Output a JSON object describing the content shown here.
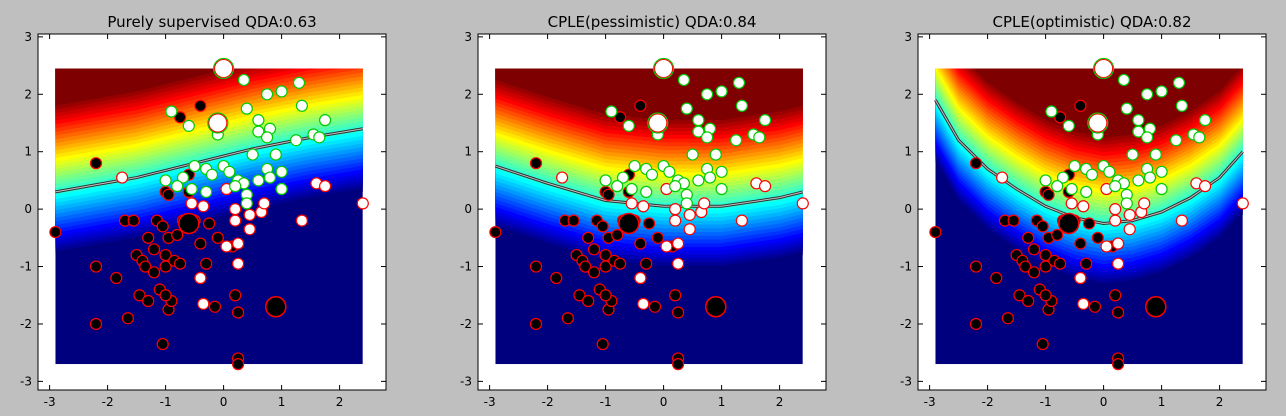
{
  "figure": {
    "background": "#bfbfbf"
  },
  "chart_data": [
    {
      "type": "scatter",
      "title": "Purely supervised QDA:0.63",
      "xlim": [
        -3.2,
        2.8
      ],
      "ylim": [
        -3.15,
        3.05
      ],
      "xticks": [
        "-3",
        "-2",
        "-1",
        "0",
        "1",
        "2"
      ],
      "yticks": [
        "-3",
        "-2",
        "-1",
        "0",
        "1",
        "2",
        "3"
      ],
      "grid": false,
      "background": "decision-function heatmap (jet colormap) with decision boundary",
      "boundary": {
        "x": [
          -2.9,
          -1.5,
          -0.5,
          0.5,
          1.5,
          2.4
        ],
        "y": [
          0.3,
          0.55,
          0.8,
          1.05,
          1.25,
          1.4
        ]
      }
    },
    {
      "type": "scatter",
      "title": "CPLE(pessimistic) QDA:0.84",
      "xlim": [
        -3.2,
        2.8
      ],
      "ylim": [
        -3.15,
        3.05
      ],
      "xticks": [
        "-3",
        "-2",
        "-1",
        "0",
        "1",
        "2"
      ],
      "yticks": [
        "-3",
        "-2",
        "-1",
        "0",
        "1",
        "2",
        "3"
      ],
      "grid": false,
      "background": "decision-function heatmap (jet colormap) with decision boundary",
      "boundary": {
        "x": [
          -2.9,
          -2.0,
          -1.0,
          0.0,
          1.0,
          2.0,
          2.4
        ],
        "y": [
          0.75,
          0.45,
          0.15,
          0.05,
          0.05,
          0.2,
          0.3
        ]
      }
    },
    {
      "type": "scatter",
      "title": "CPLE(optimistic) QDA:0.82",
      "xlim": [
        -3.2,
        2.8
      ],
      "ylim": [
        -3.15,
        3.05
      ],
      "xticks": [
        "-3",
        "-2",
        "-1",
        "0",
        "1",
        "2"
      ],
      "yticks": [
        "-3",
        "-2",
        "-1",
        "0",
        "1",
        "2",
        "3"
      ],
      "grid": false,
      "background": "decision-function heatmap (jet colormap) with decision boundary",
      "boundary": {
        "x": [
          -2.9,
          -2.5,
          -2.0,
          -1.5,
          -1.0,
          -0.5,
          0.0,
          0.5,
          1.0,
          1.5,
          2.0,
          2.4
        ],
        "y": [
          1.9,
          1.2,
          0.7,
          0.35,
          0.05,
          -0.15,
          -0.25,
          -0.2,
          -0.05,
          0.2,
          0.55,
          1.0
        ]
      }
    }
  ],
  "points": {
    "labeled_class0": [
      [
        -0.1,
        1.5
      ],
      [
        0.0,
        2.45
      ]
    ],
    "labeled_class1": [
      [
        -0.6,
        -0.25
      ],
      [
        0.9,
        -1.7
      ]
    ],
    "class0": [
      [
        -0.9,
        1.7
      ],
      [
        -0.6,
        1.45
      ],
      [
        -0.1,
        1.3
      ],
      [
        0.35,
        2.25
      ],
      [
        0.75,
        2.0
      ],
      [
        1.0,
        2.05
      ],
      [
        1.3,
        2.2
      ],
      [
        1.35,
        1.8
      ],
      [
        1.75,
        1.55
      ],
      [
        0.4,
        1.75
      ],
      [
        0.6,
        1.55
      ],
      [
        0.6,
        1.35
      ],
      [
        0.8,
        1.4
      ],
      [
        1.25,
        1.2
      ],
      [
        1.55,
        1.3
      ],
      [
        1.65,
        1.25
      ],
      [
        0.75,
        1.25
      ],
      [
        0.9,
        0.95
      ],
      [
        -0.5,
        0.75
      ],
      [
        -0.3,
        0.7
      ],
      [
        -0.2,
        0.6
      ],
      [
        0.0,
        0.75
      ],
      [
        0.1,
        0.65
      ],
      [
        0.25,
        0.5
      ],
      [
        0.5,
        0.95
      ],
      [
        0.6,
        0.5
      ],
      [
        0.75,
        0.7
      ],
      [
        0.8,
        0.55
      ],
      [
        1.0,
        0.65
      ],
      [
        1.0,
        0.35
      ],
      [
        0.4,
        0.25
      ],
      [
        0.4,
        0.1
      ],
      [
        0.35,
        0.45
      ],
      [
        -0.7,
        0.55
      ],
      [
        -0.55,
        0.35
      ],
      [
        -1.0,
        0.5
      ],
      [
        -0.3,
        0.3
      ],
      [
        -0.8,
        0.4
      ],
      [
        0.2,
        0.4
      ]
    ],
    "class_mixed": [
      [
        0.05,
        0.35
      ],
      [
        0.2,
        0.0
      ],
      [
        0.2,
        -0.2
      ],
      [
        0.45,
        -0.1
      ],
      [
        0.65,
        -0.05
      ],
      [
        0.7,
        0.1
      ],
      [
        1.35,
        -0.2
      ],
      [
        1.6,
        0.45
      ],
      [
        1.75,
        0.4
      ],
      [
        2.4,
        0.1
      ],
      [
        -1.75,
        0.55
      ],
      [
        0.25,
        -0.95
      ],
      [
        -0.4,
        -1.2
      ],
      [
        -0.35,
        -1.65
      ],
      [
        0.05,
        -0.65
      ],
      [
        0.25,
        -0.6
      ],
      [
        0.45,
        -0.35
      ],
      [
        -0.35,
        0.05
      ],
      [
        -0.55,
        0.1
      ]
    ],
    "class1": [
      [
        -2.2,
        0.8
      ],
      [
        -0.75,
        1.6
      ],
      [
        -0.4,
        1.8
      ],
      [
        -2.9,
        -0.4
      ],
      [
        -2.2,
        -1.0
      ],
      [
        -2.2,
        -2.0
      ],
      [
        -1.85,
        -1.2
      ],
      [
        -1.65,
        -1.9
      ],
      [
        -1.7,
        -0.2
      ],
      [
        -1.55,
        -0.2
      ],
      [
        -1.5,
        -0.8
      ],
      [
        -1.45,
        -1.5
      ],
      [
        -1.4,
        -0.9
      ],
      [
        -1.3,
        -0.5
      ],
      [
        -1.35,
        -1.0
      ],
      [
        -1.3,
        -1.6
      ],
      [
        -1.2,
        -0.7
      ],
      [
        -1.2,
        -1.1
      ],
      [
        -1.15,
        -0.2
      ],
      [
        -1.1,
        -1.4
      ],
      [
        -1.05,
        -0.3
      ],
      [
        -1.0,
        -1.0
      ],
      [
        -1.0,
        -0.8
      ],
      [
        -0.95,
        -1.75
      ],
      [
        -0.95,
        -0.5
      ],
      [
        -0.9,
        -1.6
      ],
      [
        -0.85,
        -0.9
      ],
      [
        -0.8,
        -0.45
      ],
      [
        -0.75,
        -0.95
      ],
      [
        -0.7,
        -0.2
      ],
      [
        -1.0,
        -1.5
      ],
      [
        -1.05,
        -2.35
      ],
      [
        -1.0,
        0.3
      ],
      [
        -0.95,
        0.25
      ],
      [
        -0.6,
        0.6
      ],
      [
        -0.4,
        -0.6
      ],
      [
        -0.4,
        -1.2
      ],
      [
        -0.3,
        -0.95
      ],
      [
        -0.15,
        -1.7
      ],
      [
        -0.1,
        -0.5
      ],
      [
        0.15,
        -0.65
      ],
      [
        0.2,
        -1.5
      ],
      [
        0.25,
        -1.8
      ],
      [
        0.25,
        -2.6
      ],
      [
        0.25,
        -2.7
      ],
      [
        -0.6,
        0.3
      ],
      [
        -0.5,
        -0.2
      ],
      [
        -0.25,
        -0.25
      ]
    ]
  }
}
